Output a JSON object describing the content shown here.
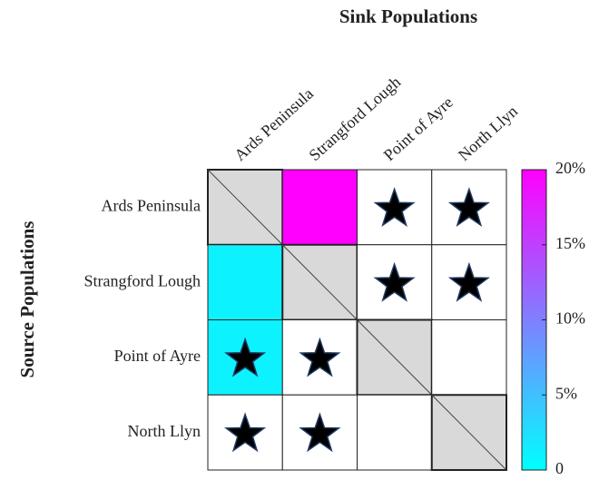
{
  "chart_data": {
    "type": "heatmap",
    "title": "Sink Populations",
    "ylabel": "Source Populations",
    "columns": [
      "Ards Peninsula",
      "Strangford Lough",
      "Point of Ayre",
      "North Llyn"
    ],
    "rows": [
      "Ards Peninsula",
      "Strangford Lough",
      "Point of Ayre",
      "North Llyn"
    ],
    "values": [
      [
        null,
        20,
        null,
        null
      ],
      [
        1,
        null,
        null,
        null
      ],
      [
        1,
        null,
        null,
        null
      ],
      [
        null,
        null,
        null,
        null
      ]
    ],
    "stars": [
      [
        false,
        false,
        true,
        true
      ],
      [
        false,
        false,
        true,
        true
      ],
      [
        true,
        true,
        false,
        false
      ],
      [
        true,
        true,
        false,
        false
      ]
    ],
    "colormap": [
      "#00ffff",
      "#ff00ff"
    ],
    "clim": [
      0,
      20
    ],
    "cticks": [
      0,
      {
        "value": 5,
        "label": "5%"
      },
      {
        "value": 10,
        "label": "10%"
      },
      {
        "value": 15,
        "label": "15%"
      },
      {
        "value": 20,
        "label": "20%"
      }
    ]
  }
}
